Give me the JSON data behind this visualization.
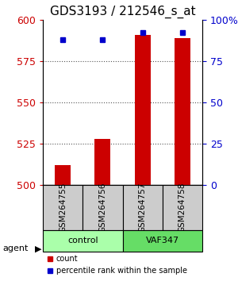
{
  "title": "GDS3193 / 212546_s_at",
  "samples": [
    "GSM264755",
    "GSM264756",
    "GSM264757",
    "GSM264758"
  ],
  "counts": [
    512,
    528,
    591,
    589
  ],
  "percentile_ranks": [
    88,
    88,
    92,
    92
  ],
  "ylim_left": [
    500,
    600
  ],
  "ylim_right": [
    0,
    100
  ],
  "yticks_left": [
    500,
    525,
    550,
    575,
    600
  ],
  "yticks_right": [
    0,
    25,
    50,
    75,
    100
  ],
  "bar_color": "#cc0000",
  "dot_color": "#0000cc",
  "groups": [
    {
      "label": "control",
      "samples": [
        0,
        1
      ],
      "color": "#aaffaa"
    },
    {
      "label": "VAF347",
      "samples": [
        2,
        3
      ],
      "color": "#66dd66"
    }
  ],
  "group_label": "agent",
  "legend_count_label": "count",
  "legend_pct_label": "percentile rank within the sample",
  "background_color": "#ffffff",
  "plot_bg_color": "#ffffff",
  "sample_box_color": "#cccccc",
  "dotted_line_color": "#555555",
  "bar_width": 0.4,
  "title_fontsize": 11,
  "axis_label_fontsize": 9,
  "tick_fontsize": 9
}
